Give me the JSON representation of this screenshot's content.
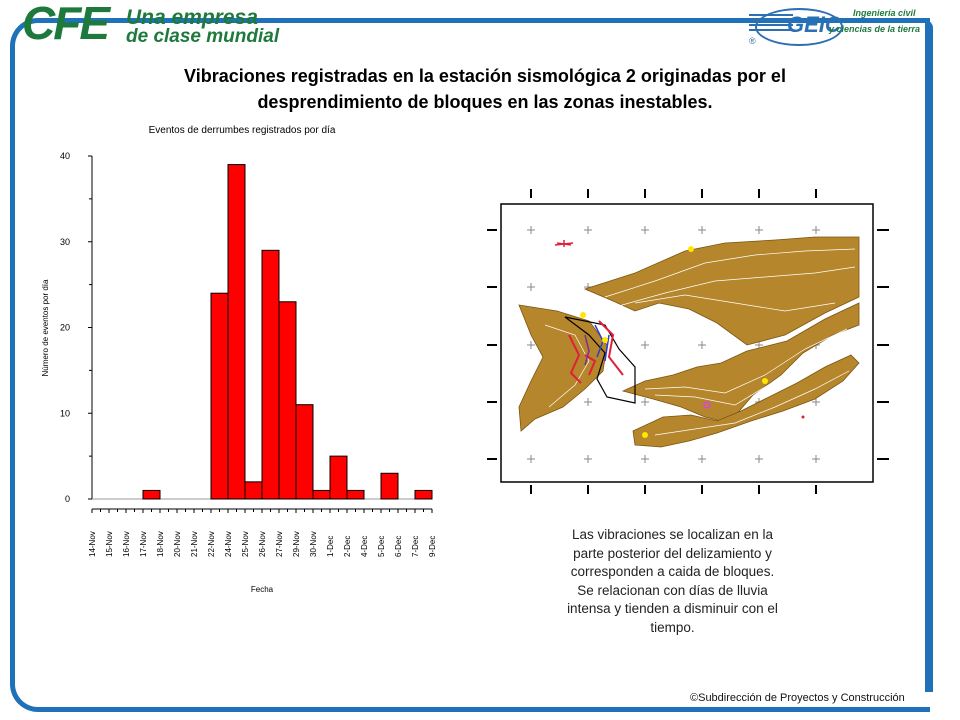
{
  "header": {
    "cfe_logo_big": "CFE",
    "cfe_logo_line1": "Una empresa",
    "cfe_logo_line2": "de clase mundial",
    "geic_logo_word": "GEIC",
    "geic_logo_r": "®",
    "geic_logo_line1": "Ingeniería civil",
    "geic_logo_line2": "y ciencias de la tierra"
  },
  "slide": {
    "title_line1": "Vibraciones registradas en la estación sismológica 2 originadas por el",
    "title_line2": "desprendimiento de bloques en las zonas inestables.",
    "description_lines": [
      "Las vibraciones se localizan en la",
      "parte posterior del delizamiento y",
      "corresponden a caida de bloques.",
      "Se relacionan con días de lluvia",
      "intensa y tienden a disminuir con el",
      "tiempo."
    ],
    "copyright": "©Subdirección de Proyectos y Construcción"
  },
  "colors": {
    "frame": "#1f72b8",
    "bar_fill": "#ff0000",
    "terrain_fill": "#b5862b",
    "terrain_line": "#7a5512",
    "cfe_green": "#1e7a3c"
  },
  "chart_data": {
    "type": "bar",
    "title": "Eventos de derrumbes registrados por día",
    "xlabel": "Fecha",
    "ylabel": "Número de eventos por día",
    "ylim": [
      0,
      40
    ],
    "yticks": [
      0,
      10,
      20,
      30,
      40
    ],
    "grid": false,
    "x_tick_labels": [
      "14-Nov",
      "15-Nov",
      "16-Nov",
      "17-Nov",
      "18-Nov",
      "20-Nov",
      "21-Nov",
      "22-Nov",
      "24-Nov",
      "25-Nov",
      "26-Nov",
      "27-Nov",
      "29-Nov",
      "30-Nov",
      "1-Dec",
      "2-Dec",
      "4-Dec",
      "5-Dec",
      "6-Dec",
      "7-Dec",
      "9-Dec"
    ],
    "bars": [
      {
        "start": 3.0,
        "value": 1
      },
      {
        "start": 7.0,
        "value": 24
      },
      {
        "start": 8.0,
        "value": 39
      },
      {
        "start": 9.0,
        "value": 2
      },
      {
        "start": 10.0,
        "value": 29
      },
      {
        "start": 11.0,
        "value": 23
      },
      {
        "start": 12.0,
        "value": 11
      },
      {
        "start": 13.0,
        "value": 1
      },
      {
        "start": 14.0,
        "value": 5
      },
      {
        "start": 15.0,
        "value": 1
      },
      {
        "start": 17.0,
        "value": 3
      },
      {
        "start": 19.0,
        "value": 1
      }
    ]
  }
}
